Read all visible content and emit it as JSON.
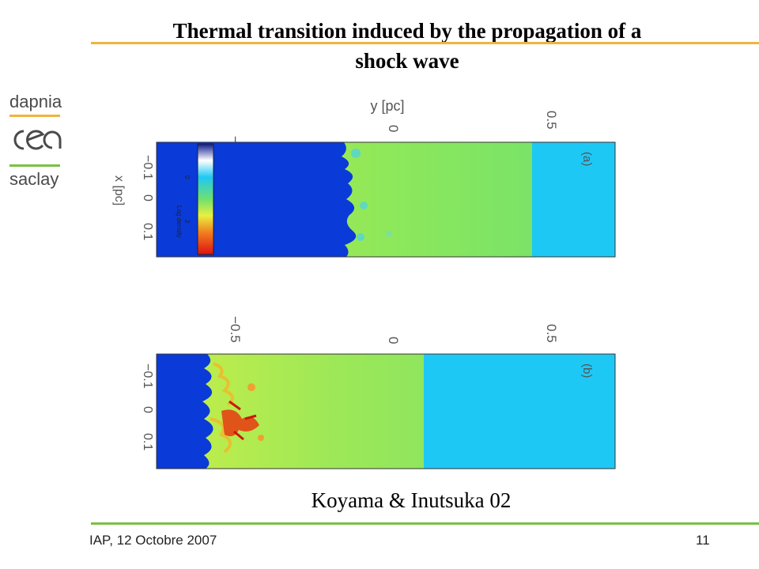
{
  "slide": {
    "title_line1": "Thermal transition induced by the propagation of  a",
    "title_line2": "shock wave",
    "caption": "Koyama & Inutsuka 02",
    "footer_left": "IAP, 12 Octobre 2007",
    "page_number": "11"
  },
  "logo": {
    "line1": "dapnia",
    "line2": "cea",
    "line3": "saclay",
    "accent_colors": [
      "#f0b43c",
      "#7ac143"
    ]
  },
  "figure": {
    "axis_y_label": "y [pc]",
    "axis_x_label": "x [pc]",
    "y_ticks": [
      "−0.5",
      "0",
      "0.5"
    ],
    "x_ticks": [
      "−0.1",
      "0",
      "0.1"
    ],
    "colorbar_label": "Log density",
    "colorbar_ticks": [
      "0",
      "2"
    ],
    "panels": [
      {
        "label": "(a)",
        "front_position_pc": -0.1,
        "shock_position_pc": 0.47
      },
      {
        "label": "(b)",
        "front_position_pc": -0.52,
        "shock_position_pc": 0.13
      }
    ],
    "colors": {
      "cold_phase": "#0a3ad8",
      "warm_phase": "#8ee85a",
      "shocked_phase": "#1ec8f5",
      "dense_clumps": "#e83a10"
    }
  }
}
